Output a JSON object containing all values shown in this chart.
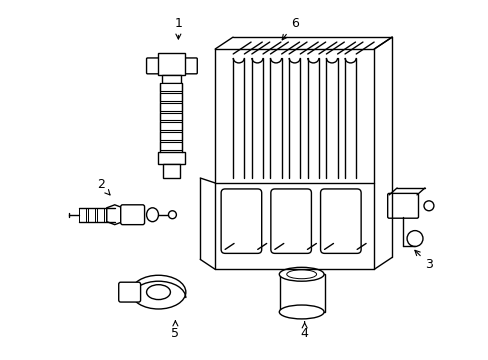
{
  "background_color": "#ffffff",
  "line_color": "#000000",
  "line_width": 1.0,
  "fig_width": 4.89,
  "fig_height": 3.6,
  "dpi": 100,
  "label_fontsize": 9
}
